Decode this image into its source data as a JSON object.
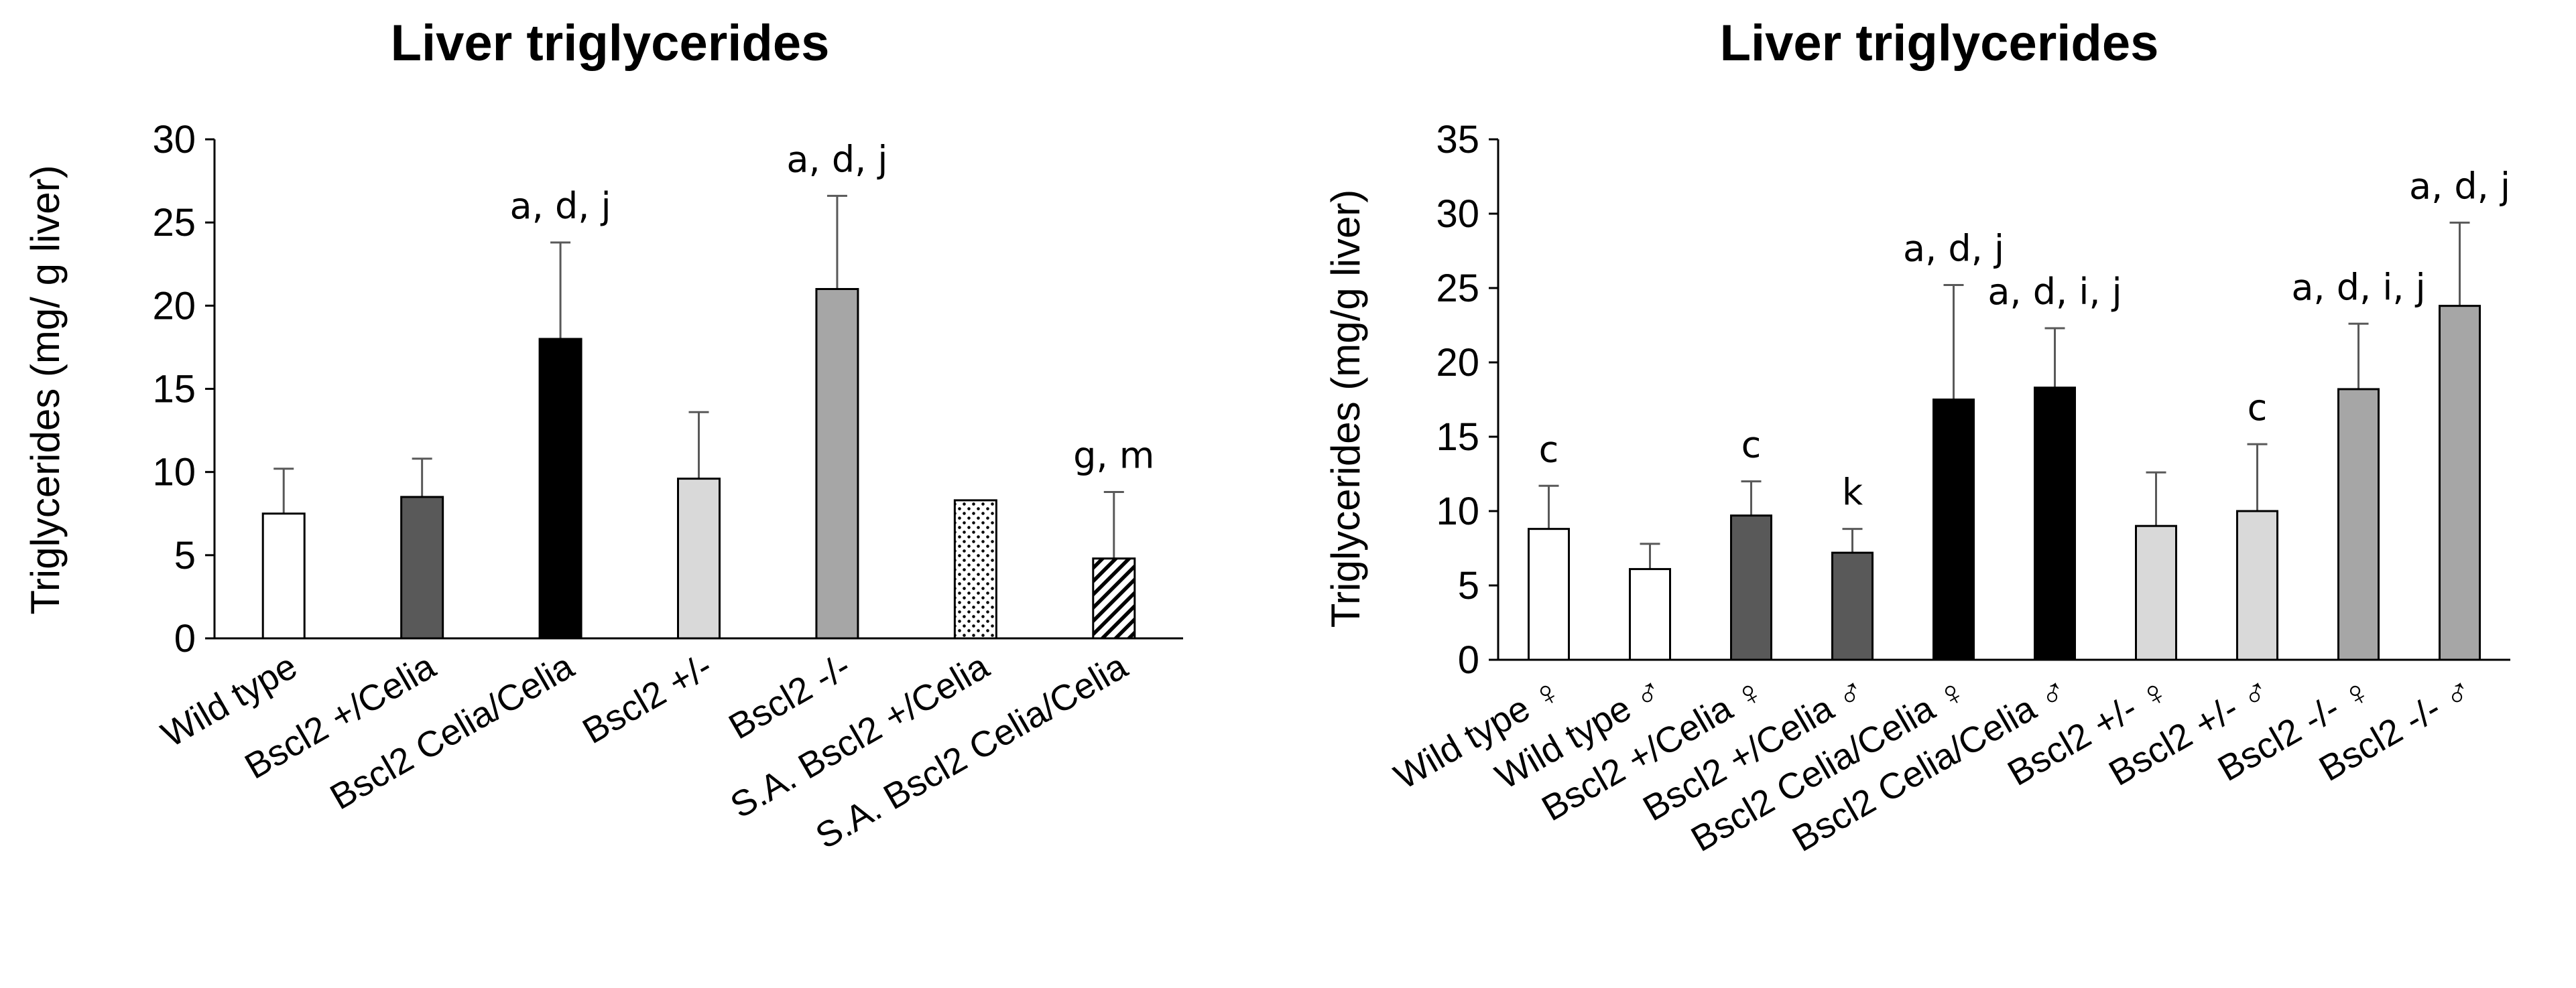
{
  "chart_data": [
    {
      "type": "bar",
      "title": "Liver triglycerides",
      "ylabel": "Triglycerides (mg/ g liver)",
      "xlabel": "",
      "ylim": [
        0,
        30
      ],
      "yticks": [
        "0",
        "5",
        "10",
        "15",
        "20",
        "25",
        "30"
      ],
      "categories": [
        "Wild type",
        "Bscl2 +/Celia",
        "Bscl2 Celia/Celia",
        "Bscl2 +/-",
        "Bscl2 -/-",
        "S.A. Bscl2 +/Celia",
        "S.A. Bscl2 Celia/Celia"
      ],
      "values": [
        7.5,
        8.5,
        18.0,
        9.6,
        21.0,
        8.3,
        4.8
      ],
      "errors": [
        2.7,
        2.3,
        5.8,
        4.0,
        5.6,
        0,
        4.0
      ],
      "annotations": [
        "",
        "",
        "a, d, j",
        "",
        "a, d, j",
        "",
        "g, m"
      ],
      "fills": [
        "white",
        "#595959",
        "#000000",
        "#d9d9d9",
        "#a6a6a6",
        "dots",
        "hatch"
      ],
      "grid": false
    },
    {
      "type": "bar",
      "title": "Liver triglycerides",
      "ylabel": "Triglycerides (mg/g liver)",
      "xlabel": "",
      "ylim": [
        0,
        35
      ],
      "yticks": [
        "0",
        "5",
        "10",
        "15",
        "20",
        "25",
        "30",
        "35"
      ],
      "categories": [
        "Wild type ♀",
        "Wild type ♂",
        "Bscl2 +/Celia ♀",
        "Bscl2 +/Celia ♂",
        "Bscl2 Celia/Celia ♀",
        "Bscl2 Celia/Celia ♂",
        "Bscl2 +/- ♀",
        "Bscl2 +/- ♂",
        "Bscl2 -/- ♀",
        "Bscl2 -/- ♂"
      ],
      "values": [
        8.8,
        6.1,
        9.7,
        7.2,
        17.5,
        18.3,
        9.0,
        10.0,
        18.2,
        23.8
      ],
      "errors": [
        2.9,
        1.7,
        2.3,
        1.6,
        7.7,
        4.0,
        3.6,
        4.5,
        4.4,
        5.6
      ],
      "annotations": [
        "c",
        "",
        "c",
        "k",
        "a, d, j",
        "a, d, i, j",
        "",
        "c",
        "a, d, i, j",
        "a, d, j"
      ],
      "fills": [
        "white",
        "white",
        "#595959",
        "#595959",
        "#000000",
        "#000000",
        "#d9d9d9",
        "#d9d9d9",
        "#a6a6a6",
        "#a6a6a6"
      ],
      "grid": false
    }
  ]
}
